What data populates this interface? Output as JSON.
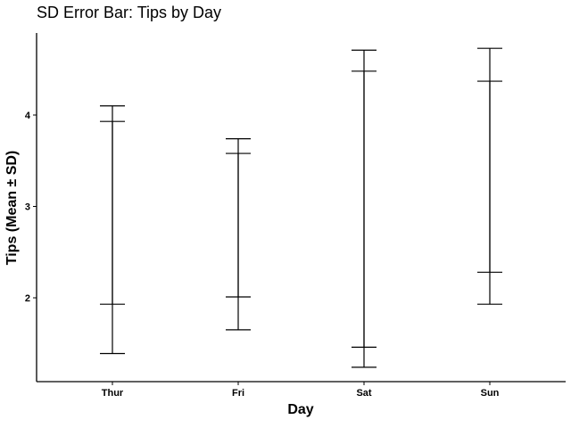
{
  "chart_data": {
    "type": "errorbar",
    "title": "SD Error Bar: Tips by Day",
    "xlabel": "Day",
    "ylabel": "Tips (Mean ± SD)",
    "categories": [
      "Thur",
      "Fri",
      "Sat",
      "Sun"
    ],
    "yticks": [
      2,
      3,
      4
    ],
    "ylim": [
      1.05,
      4.9
    ],
    "grid": false,
    "series": [
      {
        "error_bars": [
          {
            "category": "Thur",
            "lower": 1.39,
            "upper": 4.1
          },
          {
            "category": "Fri",
            "lower": 1.65,
            "upper": 3.74
          },
          {
            "category": "Sat",
            "lower": 1.24,
            "upper": 4.71
          },
          {
            "category": "Sun",
            "lower": 1.93,
            "upper": 4.73
          }
        ]
      },
      {
        "error_bars": [
          {
            "category": "Thur",
            "lower": 1.93,
            "upper": 3.93
          },
          {
            "category": "Fri",
            "lower": 2.01,
            "upper": 3.58
          },
          {
            "category": "Sat",
            "lower": 1.46,
            "upper": 4.48
          },
          {
            "category": "Sun",
            "lower": 2.28,
            "upper": 4.37
          }
        ]
      }
    ]
  }
}
